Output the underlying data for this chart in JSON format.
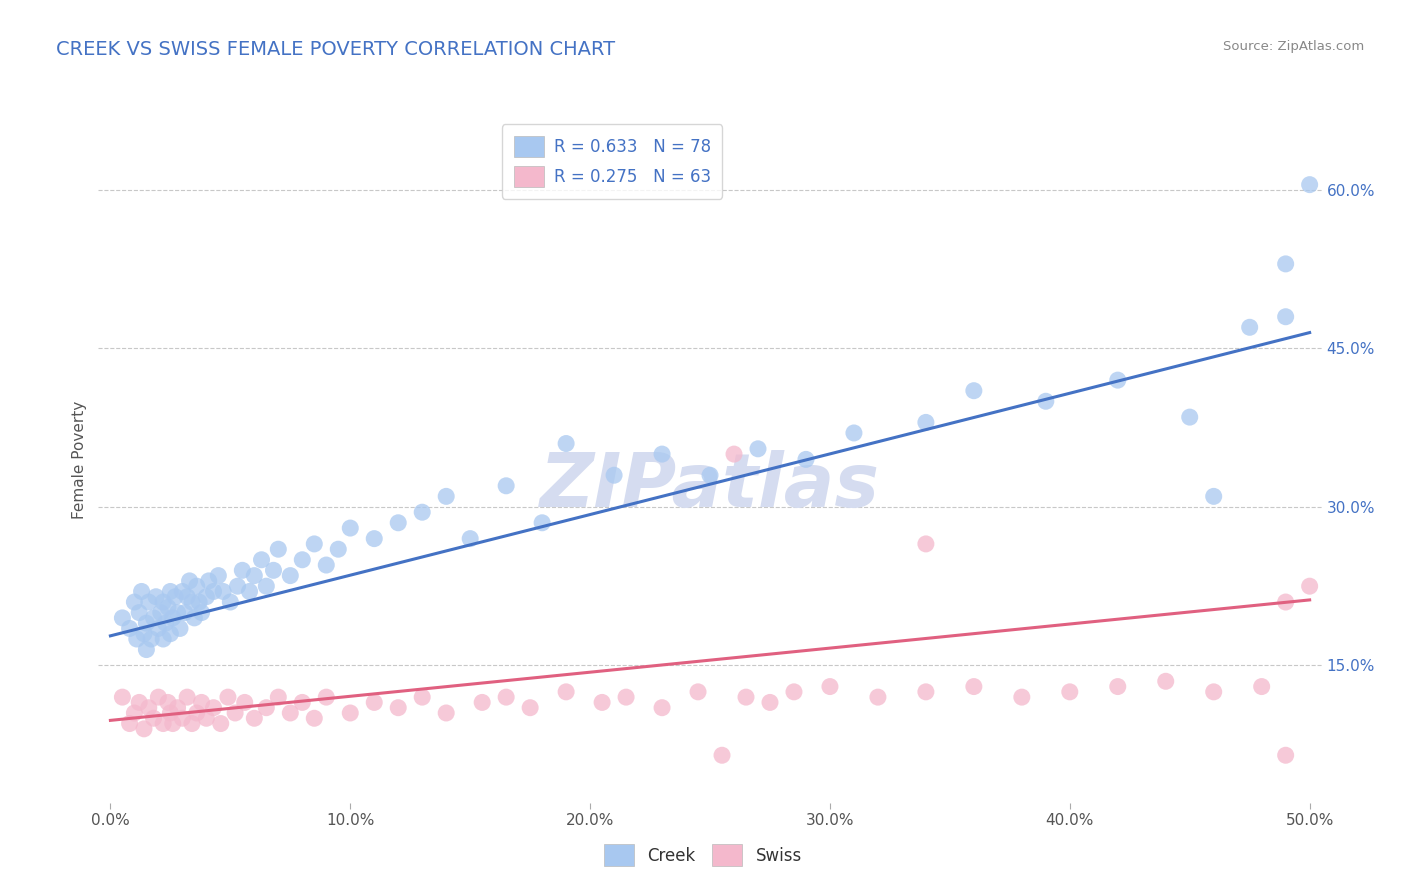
{
  "title": "CREEK VS SWISS FEMALE POVERTY CORRELATION CHART",
  "source": "Source: ZipAtlas.com",
  "ylabel": "Female Poverty",
  "xlim": [
    -0.005,
    0.505
  ],
  "ylim": [
    0.02,
    0.67
  ],
  "xticks": [
    0.0,
    0.1,
    0.2,
    0.3,
    0.4,
    0.5
  ],
  "xticklabels": [
    "0.0%",
    "10.0%",
    "20.0%",
    "30.0%",
    "40.0%",
    "50.0%"
  ],
  "ytick_positions": [
    0.15,
    0.3,
    0.45,
    0.6
  ],
  "ytick_labels": [
    "15.0%",
    "30.0%",
    "45.0%",
    "60.0%"
  ],
  "creek_R": 0.633,
  "creek_N": 78,
  "swiss_R": 0.275,
  "swiss_N": 63,
  "creek_color": "#A8C8F0",
  "swiss_color": "#F4B8CC",
  "creek_line_color": "#4472C4",
  "swiss_line_color": "#E06080",
  "background_color": "#FFFFFF",
  "grid_color": "#C8C8C8",
  "watermark": "ZIPatlas",
  "watermark_color": "#D5DCF0",
  "creek_line_x0": 0.0,
  "creek_line_y0": 0.178,
  "creek_line_x1": 0.5,
  "creek_line_y1": 0.465,
  "swiss_line_x0": 0.0,
  "swiss_line_y0": 0.098,
  "swiss_line_x1": 0.5,
  "swiss_line_y1": 0.212,
  "creek_x": [
    0.005,
    0.008,
    0.01,
    0.011,
    0.012,
    0.013,
    0.014,
    0.015,
    0.015,
    0.016,
    0.017,
    0.018,
    0.019,
    0.02,
    0.021,
    0.022,
    0.022,
    0.023,
    0.024,
    0.025,
    0.025,
    0.026,
    0.027,
    0.028,
    0.029,
    0.03,
    0.031,
    0.032,
    0.033,
    0.034,
    0.035,
    0.036,
    0.037,
    0.038,
    0.04,
    0.041,
    0.043,
    0.045,
    0.047,
    0.05,
    0.053,
    0.055,
    0.058,
    0.06,
    0.063,
    0.065,
    0.068,
    0.07,
    0.075,
    0.08,
    0.085,
    0.09,
    0.095,
    0.1,
    0.11,
    0.12,
    0.13,
    0.14,
    0.15,
    0.165,
    0.18,
    0.19,
    0.21,
    0.23,
    0.25,
    0.27,
    0.29,
    0.31,
    0.34,
    0.36,
    0.39,
    0.42,
    0.45,
    0.46,
    0.475,
    0.49,
    0.49,
    0.5
  ],
  "creek_y": [
    0.195,
    0.185,
    0.21,
    0.175,
    0.2,
    0.22,
    0.18,
    0.165,
    0.19,
    0.21,
    0.175,
    0.195,
    0.215,
    0.185,
    0.2,
    0.175,
    0.21,
    0.19,
    0.205,
    0.18,
    0.22,
    0.195,
    0.215,
    0.2,
    0.185,
    0.22,
    0.2,
    0.215,
    0.23,
    0.21,
    0.195,
    0.225,
    0.21,
    0.2,
    0.215,
    0.23,
    0.22,
    0.235,
    0.22,
    0.21,
    0.225,
    0.24,
    0.22,
    0.235,
    0.25,
    0.225,
    0.24,
    0.26,
    0.235,
    0.25,
    0.265,
    0.245,
    0.26,
    0.28,
    0.27,
    0.285,
    0.295,
    0.31,
    0.27,
    0.32,
    0.285,
    0.36,
    0.33,
    0.35,
    0.33,
    0.355,
    0.345,
    0.37,
    0.38,
    0.41,
    0.4,
    0.42,
    0.385,
    0.31,
    0.47,
    0.48,
    0.53,
    0.605
  ],
  "swiss_x": [
    0.005,
    0.008,
    0.01,
    0.012,
    0.014,
    0.016,
    0.018,
    0.02,
    0.022,
    0.024,
    0.025,
    0.026,
    0.028,
    0.03,
    0.032,
    0.034,
    0.036,
    0.038,
    0.04,
    0.043,
    0.046,
    0.049,
    0.052,
    0.056,
    0.06,
    0.065,
    0.07,
    0.075,
    0.08,
    0.085,
    0.09,
    0.1,
    0.11,
    0.12,
    0.13,
    0.14,
    0.155,
    0.165,
    0.175,
    0.19,
    0.205,
    0.215,
    0.23,
    0.245,
    0.255,
    0.265,
    0.275,
    0.285,
    0.3,
    0.32,
    0.34,
    0.36,
    0.38,
    0.4,
    0.42,
    0.44,
    0.46,
    0.48,
    0.49,
    0.5,
    0.26,
    0.34,
    0.49
  ],
  "swiss_y": [
    0.12,
    0.095,
    0.105,
    0.115,
    0.09,
    0.11,
    0.1,
    0.12,
    0.095,
    0.115,
    0.105,
    0.095,
    0.11,
    0.1,
    0.12,
    0.095,
    0.105,
    0.115,
    0.1,
    0.11,
    0.095,
    0.12,
    0.105,
    0.115,
    0.1,
    0.11,
    0.12,
    0.105,
    0.115,
    0.1,
    0.12,
    0.105,
    0.115,
    0.11,
    0.12,
    0.105,
    0.115,
    0.12,
    0.11,
    0.125,
    0.115,
    0.12,
    0.11,
    0.125,
    0.065,
    0.12,
    0.115,
    0.125,
    0.13,
    0.12,
    0.125,
    0.13,
    0.12,
    0.125,
    0.13,
    0.135,
    0.125,
    0.13,
    0.21,
    0.225,
    0.35,
    0.265,
    0.065
  ]
}
